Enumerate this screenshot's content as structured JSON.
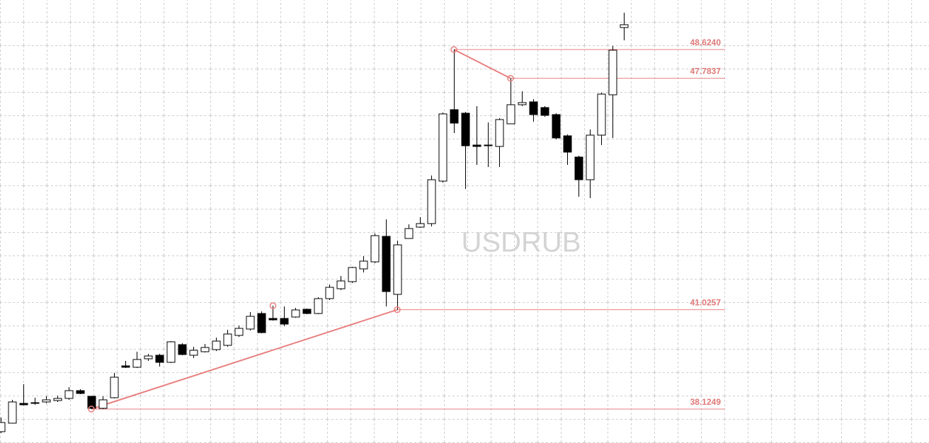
{
  "chart_data": {
    "type": "candlestick",
    "title": "USDRUB",
    "ylim": [
      37.133,
      50.071
    ],
    "grid": true,
    "up_color": "#ffffff",
    "down_color": "#000000",
    "annotation_color": "#e88080",
    "series": [
      {
        "open": [
          37.464,
          37.712,
          38.29,
          38.311,
          38.332,
          38.373,
          38.435,
          38.662,
          38.497,
          38.146,
          38.456,
          39.386,
          39.345,
          39.593,
          39.696,
          39.489,
          40.006,
          39.696,
          39.799,
          39.861,
          39.985,
          40.275,
          40.461,
          40.915,
          40.771,
          40.771,
          40.812,
          41.039,
          40.915,
          41.35,
          41.639,
          41.846,
          42.218,
          42.424,
          43.168,
          41.474,
          43.106,
          43.437,
          43.541,
          44.781,
          46.868,
          46.765,
          45.835,
          45.814,
          45.794,
          46.455,
          47.013,
          47.096,
          46.93,
          46.724,
          46.104,
          45.484,
          44.822,
          46.124,
          47.302,
          49.266
        ],
        "high": [
          37.877,
          38.394,
          38.848,
          38.456,
          38.497,
          38.518,
          38.766,
          38.704,
          38.497,
          38.497,
          39.179,
          39.531,
          39.799,
          39.737,
          39.737,
          40.109,
          40.047,
          39.944,
          40.027,
          40.213,
          40.44,
          40.564,
          40.957,
          40.977,
          41.143,
          41.122,
          41.081,
          41.06,
          41.391,
          41.763,
          42.011,
          42.28,
          42.59,
          43.251,
          43.665,
          43.044,
          43.52,
          43.727,
          44.946,
          46.786,
          48.624,
          46.806,
          46.972,
          46.496,
          46.62,
          47.7837,
          47.406,
          47.178,
          46.972,
          46.765,
          46.145,
          45.525,
          46.29,
          47.364,
          48.729,
          49.7
        ],
        "low": [
          37.422,
          37.712,
          38.228,
          38.249,
          38.29,
          38.332,
          38.394,
          38.559,
          38.1249,
          38.125,
          38.435,
          39.324,
          39.324,
          39.531,
          39.365,
          39.469,
          39.696,
          39.613,
          39.779,
          39.82,
          39.944,
          40.233,
          40.419,
          40.337,
          40.709,
          40.543,
          40.791,
          40.895,
          40.895,
          41.308,
          41.598,
          41.804,
          42.114,
          42.383,
          41.122,
          41.0257,
          43.106,
          43.417,
          43.458,
          44.739,
          46.186,
          44.553,
          45.256,
          45.194,
          45.194,
          46.455,
          46.972,
          46.517,
          46.662,
          46.0,
          45.256,
          44.326,
          44.285,
          45.835,
          46.042,
          48.894
        ],
        "close": [
          37.732,
          38.332,
          38.249,
          38.29,
          38.394,
          38.435,
          38.662,
          38.58,
          38.146,
          38.394,
          39.055,
          39.345,
          39.572,
          39.675,
          39.489,
          40.089,
          39.717,
          39.841,
          39.923,
          40.109,
          40.316,
          40.481,
          40.833,
          40.357,
          40.729,
          40.605,
          41.019,
          40.915,
          41.35,
          41.68,
          41.866,
          42.259,
          42.445,
          43.189,
          41.556,
          42.92,
          43.396,
          43.541,
          44.822,
          46.744,
          46.476,
          45.814,
          45.794,
          45.835,
          46.579,
          47.013,
          47.075,
          46.724,
          46.703,
          46.042,
          45.628,
          44.822,
          46.124,
          47.323,
          48.605,
          49.349
        ]
      }
    ],
    "levels": [
      {
        "value": 38.1249,
        "label": "38.1249"
      },
      {
        "value": 41.0257,
        "label": "41.0257"
      },
      {
        "value": 48.624,
        "label": "48.6240"
      },
      {
        "value": 47.7837,
        "label": "47.7837"
      }
    ],
    "pivots": [
      41.143
    ]
  }
}
